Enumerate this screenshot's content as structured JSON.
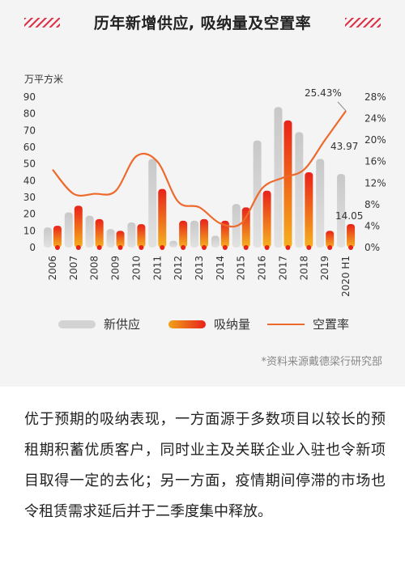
{
  "title": "历年新增供应, 吸纳量及空置率",
  "source_note": "*资料来源戴德梁行研究部",
  "body_text": "优于预期的吸纳表现，一方面源于多数项目以较长的预租期积蓄优质客户，同时业主及关联企业入驻也令新项目取得一定的去化；另一方面，疫情期间停滞的市场也令租赁需求延后并于二季度集中释放。",
  "colors": {
    "supply": "#d3d3d3",
    "absorption": "#e8221a",
    "vacancy": "#ee6a2c",
    "accent": "#e0334a"
  },
  "chart_data": {
    "type": "bar",
    "categories": [
      "2006",
      "2007",
      "2008",
      "2009",
      "2010",
      "2011",
      "2012",
      "2013",
      "2014",
      "2015",
      "2016",
      "2017",
      "2018",
      "2019",
      "2020 H1"
    ],
    "y_left_unit": "万平方米",
    "ylim_left": [
      0,
      90
    ],
    "yticks_left": [
      "0",
      "10",
      "20",
      "30",
      "40",
      "50",
      "60",
      "70",
      "80",
      "90"
    ],
    "ylim_right": [
      0,
      28
    ],
    "yticks_right": [
      "0%",
      "4%",
      "8%",
      "12%",
      "16%",
      "20%",
      "24%",
      "28%"
    ],
    "series": [
      {
        "name": "新供应",
        "type": "bar",
        "values": [
          12,
          21,
          19,
          11,
          15,
          53,
          4,
          16,
          7,
          26,
          64,
          84,
          69,
          53,
          43.97
        ]
      },
      {
        "name": "吸纳量",
        "type": "bar",
        "values": [
          13,
          25,
          17,
          10,
          14,
          35,
          16,
          17,
          16,
          24,
          34,
          76,
          45,
          10,
          14.05
        ]
      },
      {
        "name": "空置率",
        "type": "line",
        "values": [
          14.5,
          10,
          10,
          10.5,
          17,
          16,
          8.5,
          7.5,
          4.5,
          4.5,
          11,
          13,
          14.5,
          20,
          25.43
        ]
      }
    ],
    "annotations": {
      "supply_last": "43.97",
      "absorption_last": "14.05",
      "vacancy_last": "25.43%"
    },
    "legend": [
      "新供应",
      "吸纳量",
      "空置率"
    ],
    "legend_position": "bottom"
  }
}
